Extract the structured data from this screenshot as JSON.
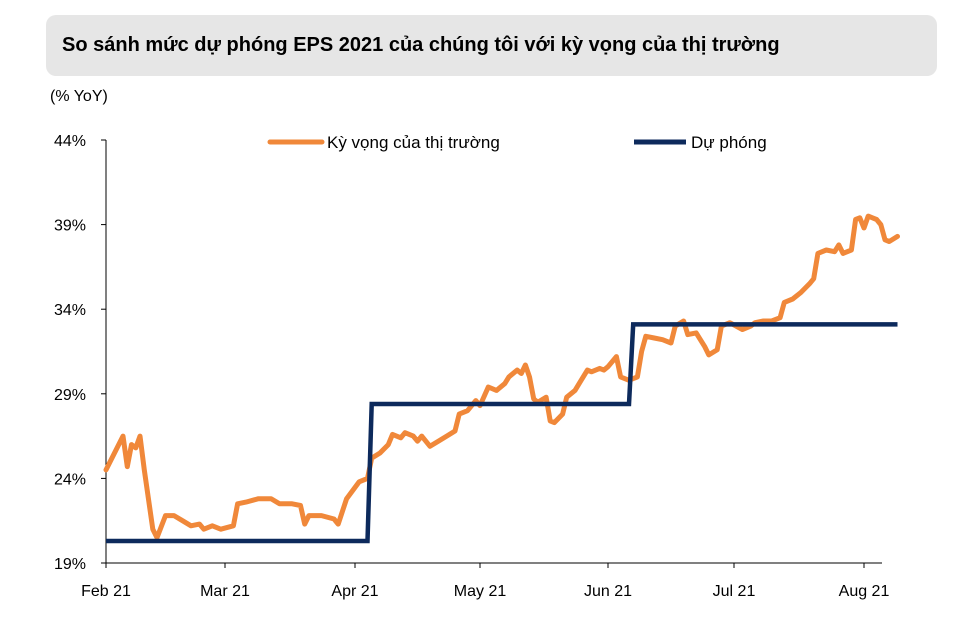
{
  "header": {
    "title": "So sánh mức dự phóng EPS 2021 của chúng tôi với kỳ vọng của thị trường",
    "y_unit": "(% YoY)"
  },
  "colors": {
    "market": "#f0883a",
    "forecast": "#0d2a5c",
    "axis": "#000000",
    "title_bg": "#e6e6e6"
  },
  "chart_data": {
    "type": "line",
    "title": "So sánh mức dự phóng EPS 2021 của chúng tôi với kỳ vọng của thị trường",
    "ylabel": "(% YoY)",
    "xlabel": "",
    "ylim": [
      19,
      44
    ],
    "yticks": [
      "19%",
      "24%",
      "29%",
      "34%",
      "39%",
      "44%"
    ],
    "ytick_values": [
      19,
      24,
      29,
      34,
      39,
      44
    ],
    "xticks": [
      "Feb 21",
      "Mar 21",
      "Apr 21",
      "May 21",
      "Jun 21",
      "Jul 21",
      "Aug 21"
    ],
    "xtick_dates": [
      "2021-02-01",
      "2021-03-01",
      "2021-04-01",
      "2021-05-01",
      "2021-06-01",
      "2021-07-01",
      "2021-08-01"
    ],
    "xlim": [
      "2021-02-01",
      "2021-08-06"
    ],
    "grid": false,
    "legend_position": "top",
    "series": [
      {
        "name": "Kỳ vọng của thị trường",
        "color": "#f0883a",
        "points": [
          [
            "2021-02-01",
            24.5
          ],
          [
            "2021-02-03",
            25.5
          ],
          [
            "2021-02-05",
            26.5
          ],
          [
            "2021-02-06",
            24.7
          ],
          [
            "2021-02-07",
            26.0
          ],
          [
            "2021-02-08",
            25.8
          ],
          [
            "2021-02-09",
            26.5
          ],
          [
            "2021-02-10",
            24.5
          ],
          [
            "2021-02-12",
            21.0
          ],
          [
            "2021-02-13",
            20.5
          ],
          [
            "2021-02-15",
            21.8
          ],
          [
            "2021-02-17",
            21.8
          ],
          [
            "2021-02-19",
            21.5
          ],
          [
            "2021-02-21",
            21.2
          ],
          [
            "2021-02-23",
            21.3
          ],
          [
            "2021-02-24",
            21.0
          ],
          [
            "2021-02-26",
            21.2
          ],
          [
            "2021-02-28",
            21.0
          ],
          [
            "2021-03-03",
            21.2
          ],
          [
            "2021-03-04",
            22.5
          ],
          [
            "2021-03-06",
            22.6
          ],
          [
            "2021-03-09",
            22.8
          ],
          [
            "2021-03-12",
            22.8
          ],
          [
            "2021-03-14",
            22.5
          ],
          [
            "2021-03-17",
            22.5
          ],
          [
            "2021-03-19",
            22.4
          ],
          [
            "2021-03-20",
            21.3
          ],
          [
            "2021-03-21",
            21.8
          ],
          [
            "2021-03-24",
            21.8
          ],
          [
            "2021-03-27",
            21.6
          ],
          [
            "2021-03-28",
            21.3
          ],
          [
            "2021-03-30",
            22.8
          ],
          [
            "2021-04-02",
            23.8
          ],
          [
            "2021-04-04",
            24.0
          ],
          [
            "2021-04-05",
            25.2
          ],
          [
            "2021-04-07",
            25.5
          ],
          [
            "2021-04-09",
            26.0
          ],
          [
            "2021-04-10",
            26.6
          ],
          [
            "2021-04-12",
            26.4
          ],
          [
            "2021-04-13",
            26.7
          ],
          [
            "2021-04-15",
            26.5
          ],
          [
            "2021-04-16",
            26.2
          ],
          [
            "2021-04-17",
            26.5
          ],
          [
            "2021-04-19",
            25.9
          ],
          [
            "2021-04-21",
            26.2
          ],
          [
            "2021-04-23",
            26.5
          ],
          [
            "2021-04-25",
            26.8
          ],
          [
            "2021-04-26",
            27.8
          ],
          [
            "2021-04-28",
            28.0
          ],
          [
            "2021-04-30",
            28.6
          ],
          [
            "2021-05-01",
            28.3
          ],
          [
            "2021-05-03",
            29.4
          ],
          [
            "2021-05-05",
            29.2
          ],
          [
            "2021-05-07",
            29.6
          ],
          [
            "2021-05-08",
            30.0
          ],
          [
            "2021-05-10",
            30.4
          ],
          [
            "2021-05-11",
            30.2
          ],
          [
            "2021-05-12",
            30.7
          ],
          [
            "2021-05-13",
            30.0
          ],
          [
            "2021-05-14",
            28.7
          ],
          [
            "2021-05-15",
            28.5
          ],
          [
            "2021-05-17",
            28.8
          ],
          [
            "2021-05-18",
            27.4
          ],
          [
            "2021-05-19",
            27.3
          ],
          [
            "2021-05-21",
            27.8
          ],
          [
            "2021-05-22",
            28.8
          ],
          [
            "2021-05-24",
            29.2
          ],
          [
            "2021-05-26",
            30.0
          ],
          [
            "2021-05-27",
            30.4
          ],
          [
            "2021-05-28",
            30.3
          ],
          [
            "2021-05-30",
            30.5
          ],
          [
            "2021-05-31",
            30.4
          ],
          [
            "2021-06-01",
            30.6
          ],
          [
            "2021-06-03",
            31.2
          ],
          [
            "2021-06-04",
            30.0
          ],
          [
            "2021-06-06",
            29.8
          ],
          [
            "2021-06-08",
            30.0
          ],
          [
            "2021-06-09",
            31.5
          ],
          [
            "2021-06-10",
            32.4
          ],
          [
            "2021-06-12",
            32.3
          ],
          [
            "2021-06-14",
            32.2
          ],
          [
            "2021-06-16",
            32.0
          ],
          [
            "2021-06-17",
            33.0
          ],
          [
            "2021-06-19",
            33.3
          ],
          [
            "2021-06-20",
            32.5
          ],
          [
            "2021-06-22",
            32.6
          ],
          [
            "2021-06-24",
            31.8
          ],
          [
            "2021-06-25",
            31.3
          ],
          [
            "2021-06-27",
            31.6
          ],
          [
            "2021-06-28",
            33.0
          ],
          [
            "2021-06-30",
            33.2
          ],
          [
            "2021-07-03",
            32.8
          ],
          [
            "2021-07-05",
            33.0
          ],
          [
            "2021-07-06",
            33.2
          ],
          [
            "2021-07-08",
            33.3
          ],
          [
            "2021-07-10",
            33.3
          ],
          [
            "2021-07-12",
            33.5
          ],
          [
            "2021-07-13",
            34.4
          ],
          [
            "2021-07-15",
            34.6
          ],
          [
            "2021-07-17",
            35.0
          ],
          [
            "2021-07-19",
            35.5
          ],
          [
            "2021-07-20",
            35.8
          ],
          [
            "2021-07-21",
            37.3
          ],
          [
            "2021-07-23",
            37.5
          ],
          [
            "2021-07-25",
            37.4
          ],
          [
            "2021-07-26",
            37.8
          ],
          [
            "2021-07-27",
            37.3
          ],
          [
            "2021-07-29",
            37.5
          ],
          [
            "2021-07-30",
            39.3
          ],
          [
            "2021-07-31",
            39.4
          ],
          [
            "2021-08-01",
            38.8
          ],
          [
            "2021-08-02",
            39.5
          ],
          [
            "2021-08-03",
            39.4
          ],
          [
            "2021-08-04",
            39.3
          ],
          [
            "2021-08-05",
            39.0
          ],
          [
            "2021-08-06",
            38.1
          ],
          [
            "2021-08-07",
            38.0
          ],
          [
            "2021-08-09",
            38.3
          ]
        ]
      },
      {
        "name": "Dự phóng",
        "color": "#0d2a5c",
        "points": [
          [
            "2021-02-01",
            20.3
          ],
          [
            "2021-04-04",
            20.3
          ],
          [
            "2021-04-05",
            28.4
          ],
          [
            "2021-06-06",
            28.4
          ],
          [
            "2021-06-07",
            33.1
          ],
          [
            "2021-08-09",
            33.1
          ]
        ]
      }
    ]
  }
}
